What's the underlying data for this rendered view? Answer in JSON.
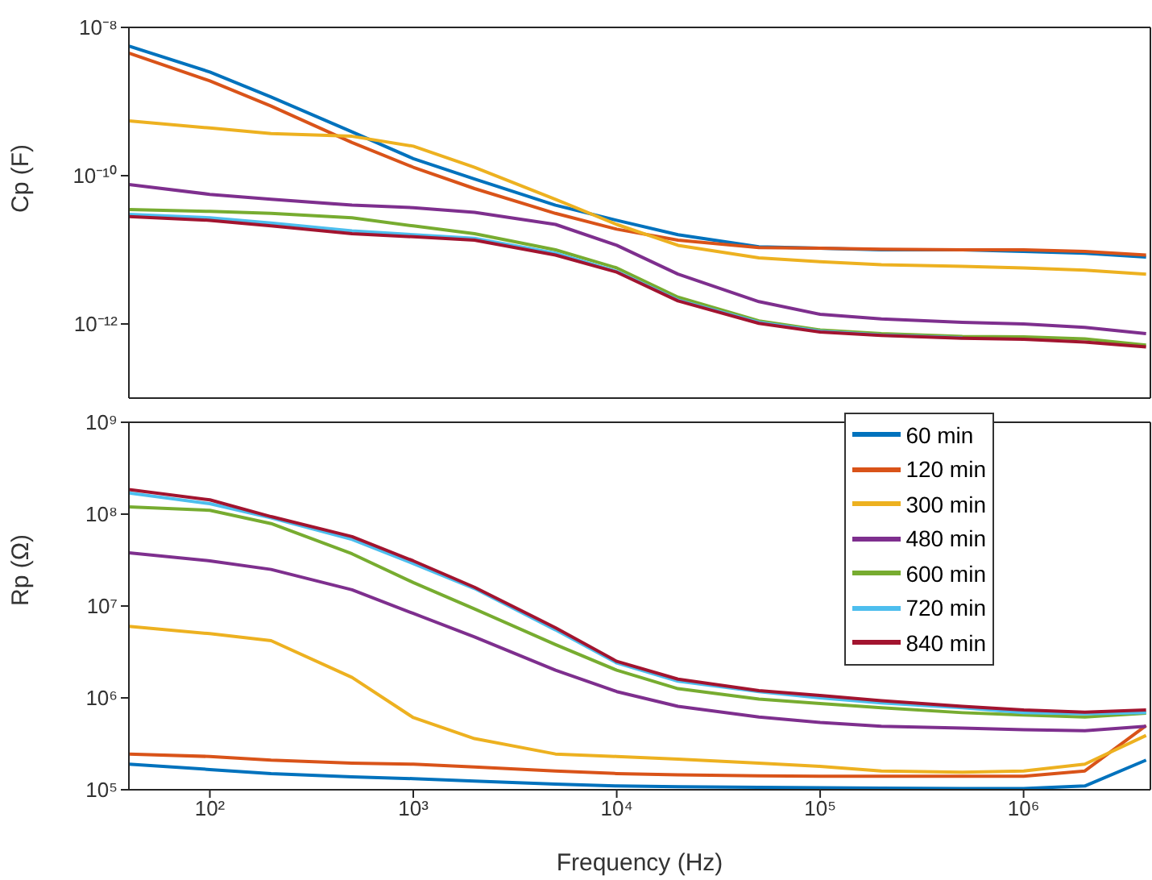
{
  "chart_data": [
    {
      "type": "line",
      "log": "xy",
      "tick_labels": "y",
      "ylabel": "Cp (F)",
      "x": [
        40,
        100,
        200,
        500,
        1000,
        2000,
        5000,
        10000,
        20000,
        50000,
        100000,
        200000,
        500000,
        1000000,
        2000000,
        4000000
      ],
      "xlim": [
        40,
        4200000
      ],
      "xticks": [
        {
          "value": 100,
          "label": null
        },
        {
          "value": 1000,
          "label": null
        },
        {
          "value": 10000,
          "label": null
        },
        {
          "value": 100000,
          "label": null
        },
        {
          "value": 1000000,
          "label": null
        }
      ],
      "ylim": [
        1e-13,
        1e-08
      ],
      "yticks": [
        {
          "value": 1e-12,
          "label": "10⁻¹²"
        },
        {
          "value": 1e-10,
          "label": "10⁻¹⁰"
        },
        {
          "value": 1e-08,
          "label": "10⁻⁸"
        }
      ],
      "series": [
        {
          "color": "#0072bd",
          "values": [
            5.6e-09,
            2.5e-09,
            1.15e-09,
            3.9e-10,
            1.7e-10,
            9e-11,
            4e-11,
            2.5e-11,
            1.6e-11,
            1.1e-11,
            1.05e-11,
            1e-11,
            1e-11,
            9.5e-12,
            9e-12,
            8e-12
          ]
        },
        {
          "color": "#d95319",
          "values": [
            4.5e-09,
            1.9e-09,
            8.7e-10,
            2.8e-10,
            1.3e-10,
            6.7e-11,
            3.1e-11,
            1.9e-11,
            1.35e-11,
            1.07e-11,
            1.05e-11,
            1.02e-11,
            1e-11,
            1e-11,
            9.5e-12,
            8.5e-12
          ]
        },
        {
          "color": "#edb120",
          "values": [
            5.5e-10,
            4.4e-10,
            3.7e-10,
            3.4e-10,
            2.5e-10,
            1.3e-10,
            4.8e-11,
            2.2e-11,
            1.15e-11,
            7.8e-12,
            6.9e-12,
            6.3e-12,
            6e-12,
            5.7e-12,
            5.3e-12,
            4.7e-12
          ]
        },
        {
          "color": "#7e2f8e",
          "values": [
            7.6e-11,
            5.6e-11,
            4.8e-11,
            4e-11,
            3.7e-11,
            3.2e-11,
            2.2e-11,
            1.15e-11,
            4.7e-12,
            2e-12,
            1.35e-12,
            1.17e-12,
            1.05e-12,
            1e-12,
            9e-13,
            7.4e-13
          ]
        },
        {
          "color": "#77ac30",
          "values": [
            3.5e-11,
            3.3e-11,
            3.1e-11,
            2.7e-11,
            2.1e-11,
            1.65e-11,
            1e-11,
            5.7e-12,
            2.3e-12,
            1.1e-12,
            8.3e-13,
            7.4e-13,
            6.8e-13,
            6.7e-13,
            6.3e-13,
            5.2e-13
          ]
        },
        {
          "color": "#4dbeee",
          "values": [
            3e-11,
            2.7e-11,
            2.3e-11,
            1.8e-11,
            1.6e-11,
            1.43e-11,
            9e-12,
            5.1e-12,
            2.1e-12,
            1.05e-12,
            8e-13,
            7.1e-13,
            6.5e-13,
            null,
            null,
            null
          ]
        },
        {
          "color": "#a2142f",
          "values": [
            2.8e-11,
            2.5e-11,
            2.1e-11,
            1.65e-11,
            1.5e-11,
            1.35e-11,
            8.5e-12,
            5e-12,
            2.05e-12,
            1.02e-12,
            7.8e-13,
            7e-13,
            6.4e-13,
            6.2e-13,
            5.7e-13,
            4.9e-13
          ]
        }
      ]
    },
    {
      "type": "line",
      "log": "xy",
      "ylabel": "Rp (Ω)",
      "xlabel": "Frequency (Hz)",
      "legend": "top right",
      "x": [
        40,
        100,
        200,
        500,
        1000,
        2000,
        5000,
        10000,
        20000,
        50000,
        100000,
        200000,
        500000,
        1000000,
        2000000,
        4000000
      ],
      "xlim": [
        40,
        4200000
      ],
      "xticks": [
        {
          "value": 100,
          "label": "10²"
        },
        {
          "value": 1000,
          "label": "10³"
        },
        {
          "value": 10000,
          "label": "10⁴"
        },
        {
          "value": 100000,
          "label": "10⁵"
        },
        {
          "value": 1000000,
          "label": "10⁶"
        }
      ],
      "ylim": [
        100000,
        1000000000
      ],
      "yticks": [
        {
          "value": 100000,
          "label": "10⁵"
        },
        {
          "value": 1000000,
          "label": "10⁶"
        },
        {
          "value": 10000000,
          "label": "10⁷"
        },
        {
          "value": 100000000,
          "label": "10⁸"
        },
        {
          "value": 1000000000,
          "label": "10⁹"
        }
      ],
      "series": [
        {
          "name": "60 min",
          "color": "#0072bd",
          "values": [
            190000,
            166000,
            150000,
            138000,
            132000,
            124000,
            115000,
            110000,
            108000,
            106000,
            105000,
            104000,
            103000,
            103000,
            110000,
            210000
          ]
        },
        {
          "name": "120 min",
          "color": "#d95319",
          "values": [
            245000,
            230000,
            210000,
            195000,
            190000,
            177000,
            160000,
            150000,
            145000,
            142000,
            140000,
            140000,
            140000,
            140000,
            160000,
            500000
          ]
        },
        {
          "name": "300 min",
          "color": "#edb120",
          "values": [
            6000000,
            5000000,
            4200000,
            1670000,
            610000,
            360000,
            245000,
            230000,
            215000,
            195000,
            180000,
            160000,
            155000,
            160000,
            190000,
            390000
          ]
        },
        {
          "name": "480 min",
          "color": "#7e2f8e",
          "values": [
            38000000,
            31000000,
            25000000,
            15000000,
            8300000,
            4600000,
            2000000,
            1170000,
            810000,
            620000,
            540000,
            490000,
            470000,
            450000,
            440000,
            490000
          ]
        },
        {
          "name": "600 min",
          "color": "#77ac30",
          "values": [
            120000000,
            110000000,
            79000000,
            37000000,
            18000000,
            9300000,
            3800000,
            2000000,
            1260000,
            970000,
            870000,
            780000,
            690000,
            650000,
            620000,
            680000
          ]
        },
        {
          "name": "720 min",
          "color": "#4dbeee",
          "values": [
            170000000,
            130000000,
            91000000,
            53000000,
            29000000,
            15500000,
            5500000,
            2400000,
            1520000,
            1170000,
            1000000,
            880000,
            780000,
            690000,
            670000,
            690000
          ]
        },
        {
          "name": "840 min",
          "color": "#a2142f",
          "values": [
            185000000,
            143000000,
            94000000,
            57000000,
            31000000,
            16000000,
            5800000,
            2500000,
            1600000,
            1200000,
            1060000,
            930000,
            810000,
            740000,
            700000,
            740000
          ]
        }
      ]
    }
  ]
}
